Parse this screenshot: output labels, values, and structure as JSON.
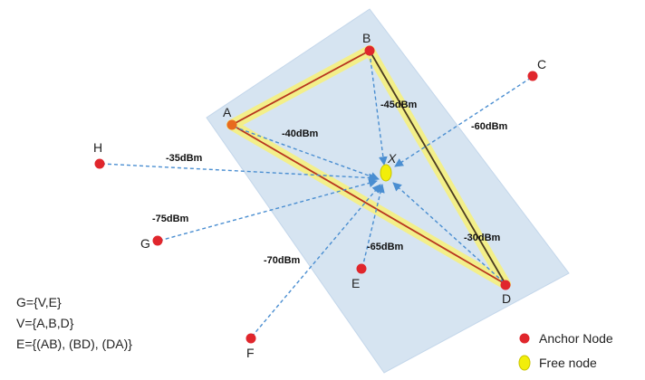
{
  "colors": {
    "region_fill": "#d6e4f1",
    "highlight": "#f3ef8a",
    "triangle_edge": "#b7351f",
    "dashed": "#4a8ed1",
    "anchor": "#e0262c",
    "free_node": "#f2ee0a"
  },
  "nodes": {
    "A": "A",
    "B": "B",
    "C": "C",
    "D": "D",
    "E": "E",
    "F": "F",
    "G": "G",
    "H": "H",
    "X": "X"
  },
  "edges": {
    "A": "-40dBm",
    "B": "-45dBm",
    "C": "-60dBm",
    "D": "-30dBm",
    "E": "-65dBm",
    "F": "-70dBm",
    "G": "-75dBm",
    "H": "-35dBm"
  },
  "graph": {
    "line1": "G={V,E}",
    "line2": "V={A,B,D}",
    "line3": "E={(AB), (BD), (DA)}"
  },
  "legend": {
    "anchor_label": "Anchor Node",
    "free_label": "Free node"
  }
}
